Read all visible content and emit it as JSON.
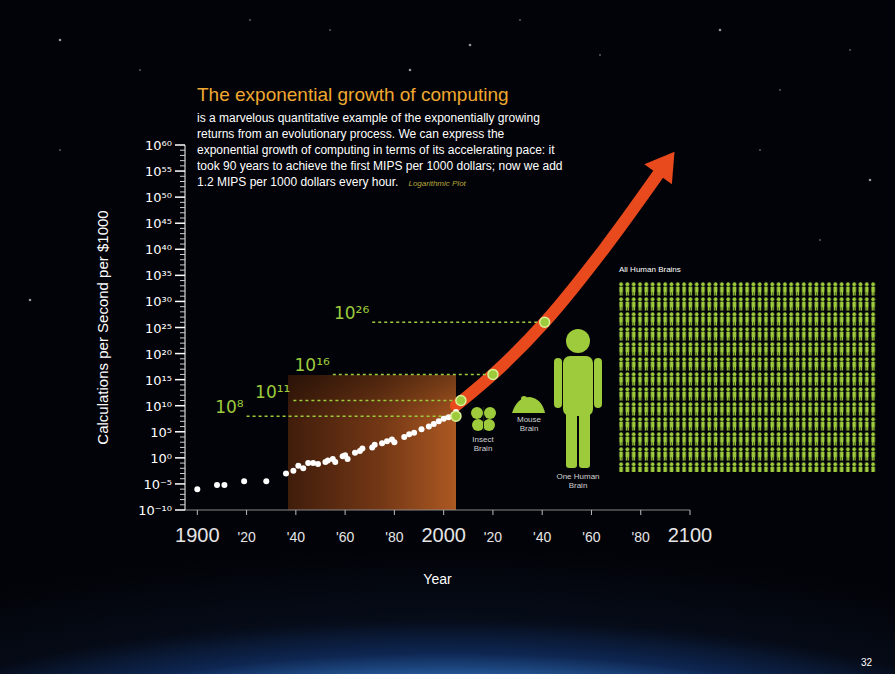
{
  "chart_data": {
    "type": "scatter",
    "title": "The exponential growth of computing",
    "subtitle": "is a marvelous quantitative example of the exponentially growing returns from an evolutionary process. We can express the exponential growth of computing in terms of its accelerating pace: it took 90 years to achieve the first MIPS per 1000 dollars; now we add 1.2 MIPS per 1000 dollars every hour.",
    "note": "Logarithmic Plot",
    "x_label": "Year",
    "y_label": "Calculations per Second per $1000",
    "log": "y",
    "grid": false,
    "xlim": [
      1895,
      2100
    ],
    "xticks": [
      1900,
      {
        "value": 1920,
        "label": "'20"
      },
      {
        "value": 1940,
        "label": "'40"
      },
      {
        "value": 1960,
        "label": "'60"
      },
      {
        "value": 1980,
        "label": "'80"
      },
      2000,
      {
        "value": 2020,
        "label": "'20"
      },
      {
        "value": 2040,
        "label": "'40"
      },
      {
        "value": 2060,
        "label": "'60"
      },
      {
        "value": 2080,
        "label": "'80"
      },
      2100
    ],
    "ylim": [
      1e-10,
      1e+60
    ],
    "yticks": [
      {
        "value": 1e-10,
        "label": "10⁻¹⁰"
      },
      {
        "value": 1e-05,
        "label": "10⁻⁵"
      },
      {
        "value": 1,
        "label": "10⁰"
      },
      {
        "value": 100000.0,
        "label": "10⁵"
      },
      {
        "value": 10000000000.0,
        "label": "10¹⁰"
      },
      {
        "value": 1000000000000000.0,
        "label": "10¹⁵"
      },
      {
        "value": 1e+20,
        "label": "10²⁰"
      },
      {
        "value": 1e+25,
        "label": "10²⁵"
      },
      {
        "value": 1e+30,
        "label": "10³⁰"
      },
      {
        "value": 1e+35,
        "label": "10³⁵"
      },
      {
        "value": 1e+40,
        "label": "10⁴⁰"
      },
      {
        "value": 1e+45,
        "label": "10⁴⁵"
      },
      {
        "value": 1e+50,
        "label": "10⁵⁰"
      },
      {
        "value": 1e+55,
        "label": "10⁵⁵"
      },
      {
        "value": 1e+60,
        "label": "10⁶⁰"
      }
    ],
    "series": [
      {
        "type": "scatter",
        "color": "#ffffff",
        "marker": "circle",
        "x": [
          1900,
          1908,
          1911,
          1919,
          1928,
          1936,
          1939,
          1941,
          1943,
          1945,
          1947,
          1949,
          1952,
          1953,
          1955,
          1956,
          1959,
          1960,
          1961,
          1964,
          1966,
          1967,
          1971,
          1972,
          1975,
          1977,
          1979,
          1980,
          1984,
          1986,
          1988,
          1991,
          1994,
          1996,
          1998,
          2000,
          2002,
          2004,
          2005
        ],
        "values": [
          1e-06,
          6.3e-06,
          6.3e-06,
          3.2e-05,
          3.2e-05,
          0.001,
          0.0032,
          0.032,
          0.01,
          0.1,
          0.1,
          0.063,
          0.16,
          0.32,
          0.63,
          0.16,
          2,
          3.2,
          0.63,
          10,
          20,
          63,
          100,
          320,
          630,
          1600,
          3200,
          1000,
          10000,
          32000,
          63000,
          320000,
          1000000,
          3200000,
          10000000,
          32000000,
          63000000,
          160000000,
          630000000
        ]
      },
      {
        "type": "line",
        "color": "#e8491d",
        "marker": "arrow",
        "line_style": "solid",
        "x": [
          2005,
          2020,
          2041,
          2065,
          2088
        ],
        "values": [
          10000000000.0,
          1e+16,
          1e+26,
          1e+40,
          1e+55
        ]
      }
    ],
    "milestones": [
      {
        "label": "10⁸",
        "value": 100000000.0,
        "x": 2005
      },
      {
        "label": "10¹¹",
        "value": 100000000000.0,
        "x": 2007
      },
      {
        "label": "10¹⁶",
        "value": 1e+16,
        "x": 2020
      },
      {
        "label": "10²⁶",
        "value": 1e+26,
        "x": 2041
      }
    ],
    "brains": [
      "Insect Brain",
      "Mouse Brain",
      "One Human Brain",
      "All Human Brains"
    ],
    "page": "32"
  }
}
